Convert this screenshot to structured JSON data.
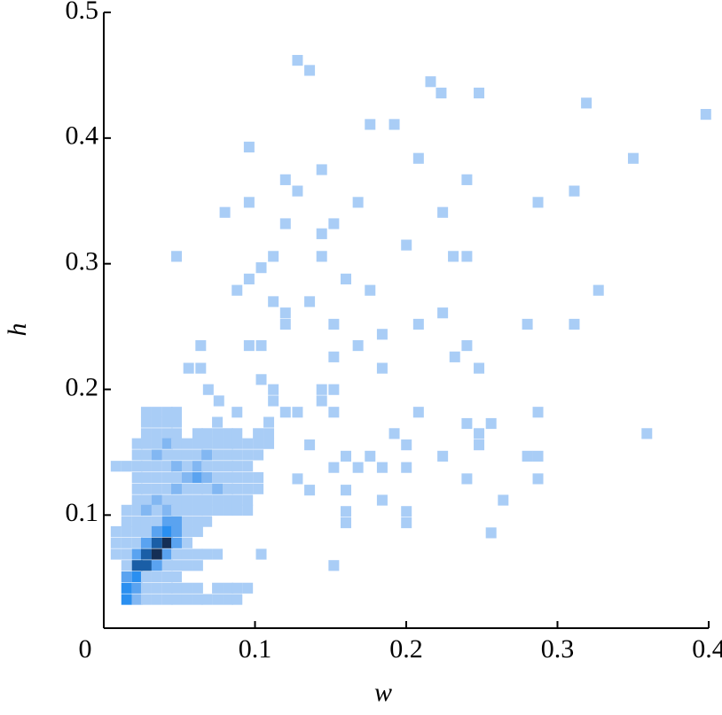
{
  "chart_data": {
    "type": "hist2d",
    "x_label": "w",
    "y_label": "h",
    "xlim": [
      0,
      0.4
    ],
    "ylim": [
      0.01,
      0.5
    ],
    "xticks": [
      0,
      0.1,
      0.2,
      0.3,
      0.4
    ],
    "yticks": [
      0.1,
      0.2,
      0.3,
      0.4,
      0.5
    ],
    "xbin_width": 0.0068,
    "ybin_width": 0.0083,
    "colors": [
      "#a9cdf6",
      "#82b7f2",
      "#5aa3f0",
      "#2a8ff0",
      "#1a5ea6",
      "#152f55"
    ],
    "rows": [
      {
        "y": 0.182,
        "x": [
          0.028,
          0.035,
          0.042,
          0.048
        ],
        "values": [
          1,
          1,
          1,
          1
        ]
      },
      {
        "y": 0.174,
        "x": [
          0.028,
          0.035,
          0.042,
          0.048,
          0.075,
          0.109
        ],
        "values": [
          1,
          1,
          1,
          1,
          1,
          1
        ]
      },
      {
        "y": 0.165,
        "x": [
          0.028,
          0.035,
          0.042,
          0.048,
          0.062,
          0.068,
          0.075,
          0.082,
          0.088,
          0.102,
          0.109
        ],
        "values": [
          1,
          1,
          1,
          1,
          1,
          1,
          1,
          1,
          1,
          1,
          1
        ]
      },
      {
        "y": 0.157,
        "x": [
          0.022,
          0.028,
          0.035,
          0.042,
          0.048,
          0.055,
          0.062,
          0.068,
          0.075,
          0.082,
          0.088,
          0.095,
          0.102,
          0.109
        ],
        "values": [
          1,
          1,
          1,
          2,
          1,
          1,
          1,
          1,
          1,
          1,
          1,
          1,
          1,
          1
        ]
      },
      {
        "y": 0.148,
        "x": [
          0.022,
          0.028,
          0.035,
          0.042,
          0.048,
          0.055,
          0.062,
          0.068,
          0.075,
          0.082,
          0.088,
          0.095,
          0.102
        ],
        "values": [
          1,
          1,
          2,
          1,
          1,
          1,
          1,
          2,
          1,
          1,
          1,
          1,
          1
        ]
      },
      {
        "y": 0.139,
        "x": [
          0.008,
          0.015,
          0.022,
          0.028,
          0.035,
          0.042,
          0.048,
          0.055,
          0.062,
          0.068,
          0.075,
          0.082,
          0.088,
          0.095
        ],
        "values": [
          1,
          1,
          1,
          1,
          1,
          1,
          2,
          1,
          2,
          1,
          1,
          1,
          1,
          1
        ]
      },
      {
        "y": 0.13,
        "x": [
          0.022,
          0.028,
          0.035,
          0.042,
          0.048,
          0.055,
          0.062,
          0.068,
          0.075,
          0.082,
          0.088,
          0.095,
          0.102
        ],
        "values": [
          1,
          1,
          1,
          1,
          1,
          2,
          3,
          2,
          1,
          1,
          1,
          1,
          1
        ]
      },
      {
        "y": 0.121,
        "x": [
          0.022,
          0.028,
          0.035,
          0.042,
          0.048,
          0.055,
          0.062,
          0.068,
          0.075,
          0.082,
          0.088,
          0.095,
          0.102
        ],
        "values": [
          1,
          1,
          1,
          1,
          2,
          1,
          1,
          1,
          2,
          1,
          1,
          1,
          1
        ]
      },
      {
        "y": 0.112,
        "x": [
          0.022,
          0.028,
          0.035,
          0.042,
          0.048,
          0.055,
          0.062,
          0.068,
          0.075,
          0.082,
          0.088,
          0.095
        ],
        "values": [
          1,
          1,
          2,
          1,
          1,
          1,
          1,
          1,
          1,
          1,
          1,
          1
        ]
      },
      {
        "y": 0.104,
        "x": [
          0.015,
          0.022,
          0.028,
          0.035,
          0.042,
          0.048,
          0.055,
          0.062,
          0.068,
          0.075,
          0.082,
          0.088,
          0.095
        ],
        "values": [
          1,
          1,
          2,
          1,
          2,
          1,
          1,
          1,
          1,
          1,
          1,
          1,
          1
        ]
      },
      {
        "y": 0.095,
        "x": [
          0.015,
          0.022,
          0.028,
          0.035,
          0.042,
          0.048,
          0.055,
          0.062,
          0.068
        ],
        "values": [
          1,
          1,
          1,
          1,
          3,
          3,
          1,
          1,
          1
        ]
      },
      {
        "y": 0.087,
        "x": [
          0.008,
          0.015,
          0.022,
          0.028,
          0.035,
          0.042,
          0.048,
          0.055,
          0.062
        ],
        "values": [
          1,
          1,
          1,
          1,
          3,
          4,
          3,
          1,
          1
        ]
      },
      {
        "y": 0.078,
        "x": [
          0.008,
          0.015,
          0.022,
          0.028,
          0.035,
          0.042,
          0.048,
          0.055
        ],
        "values": [
          1,
          1,
          1,
          3,
          5,
          6,
          3,
          1
        ]
      },
      {
        "y": 0.069,
        "x": [
          0.008,
          0.015,
          0.022,
          0.028,
          0.035,
          0.042,
          0.048,
          0.055,
          0.062,
          0.068,
          0.075
        ],
        "values": [
          1,
          1,
          3,
          5,
          6,
          3,
          1,
          1,
          1,
          1,
          1
        ]
      },
      {
        "y": 0.06,
        "x": [
          0.015,
          0.022,
          0.028,
          0.035,
          0.042,
          0.048,
          0.055,
          0.062
        ],
        "values": [
          1,
          5,
          5,
          3,
          1,
          1,
          1,
          1
        ]
      },
      {
        "y": 0.051,
        "x": [
          0.015,
          0.022,
          0.028,
          0.035,
          0.042,
          0.048
        ],
        "values": [
          3,
          4,
          1,
          1,
          1,
          1
        ]
      },
      {
        "y": 0.042,
        "x": [
          0.015,
          0.022,
          0.028,
          0.035,
          0.042,
          0.048,
          0.055,
          0.062,
          0.075,
          0.082,
          0.088,
          0.095
        ],
        "values": [
          4,
          3,
          1,
          1,
          1,
          1,
          1,
          1,
          1,
          1,
          1,
          1
        ]
      },
      {
        "y": 0.033,
        "x": [
          0.015,
          0.022,
          0.028,
          0.035,
          0.042,
          0.048,
          0.055,
          0.062,
          0.068,
          0.075,
          0.082,
          0.088
        ],
        "values": [
          4,
          2,
          1,
          1,
          1,
          1,
          1,
          1,
          1,
          1,
          1,
          1
        ]
      }
    ],
    "x": [
      0.128,
      0.136,
      0.216,
      0.223,
      0.248,
      0.319,
      0.398,
      0.176,
      0.192,
      0.096,
      0.35,
      0.208,
      0.144,
      0.24,
      0.12,
      0.128,
      0.311,
      0.287,
      0.168,
      0.096,
      0.08,
      0.224,
      0.12,
      0.152,
      0.144,
      0.2,
      0.231,
      0.24,
      0.048,
      0.144,
      0.112,
      0.104,
      0.096,
      0.16,
      0.088,
      0.176,
      0.327,
      0.112,
      0.136,
      0.12,
      0.12,
      0.224,
      0.152,
      0.208,
      0.28,
      0.311,
      0.184,
      0.064,
      0.096,
      0.104,
      0.168,
      0.24,
      0.152,
      0.232,
      0.248,
      0.056,
      0.064,
      0.184,
      0.104,
      0.112,
      0.152,
      0.144,
      0.144,
      0.152,
      0.128,
      0.208,
      0.287,
      0.24,
      0.256,
      0.192,
      0.2,
      0.248,
      0.248,
      0.136,
      0.359,
      0.16,
      0.176,
      0.2,
      0.152,
      0.184,
      0.168,
      0.128,
      0.136,
      0.16,
      0.24,
      0.287,
      0.28,
      0.287,
      0.224,
      0.184,
      0.264,
      0.16,
      0.16,
      0.2,
      0.2,
      0.256,
      0.104,
      0.152,
      0.069,
      0.076,
      0.088,
      0.112,
      0.12
    ],
    "y": [
      0.462,
      0.454,
      0.445,
      0.436,
      0.436,
      0.428,
      0.419,
      0.411,
      0.411,
      0.393,
      0.384,
      0.384,
      0.375,
      0.367,
      0.367,
      0.358,
      0.358,
      0.349,
      0.349,
      0.349,
      0.341,
      0.341,
      0.332,
      0.332,
      0.324,
      0.315,
      0.306,
      0.306,
      0.306,
      0.306,
      0.306,
      0.297,
      0.288,
      0.288,
      0.279,
      0.279,
      0.279,
      0.27,
      0.27,
      0.261,
      0.252,
      0.261,
      0.252,
      0.252,
      0.252,
      0.252,
      0.244,
      0.235,
      0.235,
      0.235,
      0.235,
      0.235,
      0.226,
      0.226,
      0.217,
      0.217,
      0.217,
      0.217,
      0.208,
      0.2,
      0.2,
      0.2,
      0.191,
      0.182,
      0.182,
      0.182,
      0.182,
      0.173,
      0.173,
      0.165,
      0.156,
      0.165,
      0.156,
      0.156,
      0.165,
      0.147,
      0.147,
      0.138,
      0.138,
      0.138,
      0.138,
      0.129,
      0.12,
      0.12,
      0.129,
      0.129,
      0.147,
      0.147,
      0.147,
      0.112,
      0.112,
      0.103,
      0.094,
      0.103,
      0.094,
      0.086,
      0.069,
      0.06,
      0.2,
      0.191,
      0.182,
      0.191,
      0.182
    ],
    "values": [
      1,
      1,
      1,
      1,
      1,
      1,
      1,
      1,
      1,
      1,
      1,
      1,
      1,
      1,
      1,
      1,
      1,
      1,
      1,
      1,
      1,
      1,
      1,
      1,
      1,
      1,
      1,
      1,
      1,
      1,
      1,
      1,
      1,
      1,
      1,
      1,
      1,
      1,
      1,
      1,
      1,
      1,
      1,
      1,
      1,
      1,
      1,
      1,
      1,
      1,
      1,
      1,
      1,
      1,
      1,
      1,
      1,
      1,
      1,
      1,
      1,
      1,
      1,
      1,
      1,
      1,
      1,
      1,
      1,
      1,
      1,
      1,
      1,
      1,
      1,
      1,
      1,
      1,
      1,
      1,
      1,
      1,
      1,
      1,
      1,
      1,
      1,
      1,
      1,
      1,
      1,
      1,
      1,
      1,
      1,
      1,
      1,
      1,
      1,
      1,
      1,
      1,
      1
    ]
  }
}
